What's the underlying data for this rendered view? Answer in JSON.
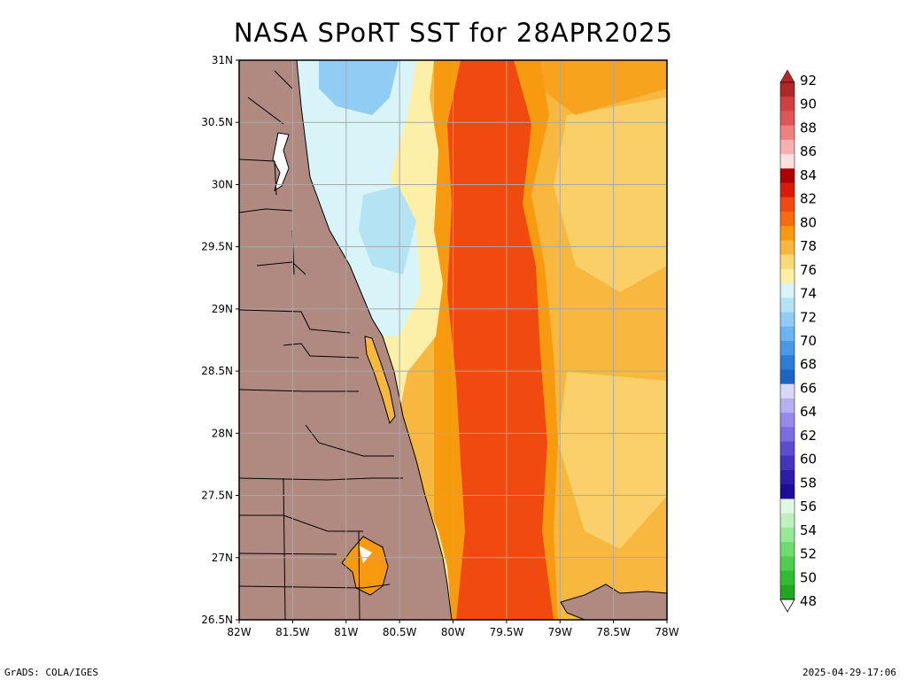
{
  "title": "NASA SPoRT SST for 28APR2025",
  "footer": {
    "left": "GrADS: COLA/IGES",
    "right": "2025-04-29-17:06"
  },
  "map": {
    "lat_ticks": [
      "31N",
      "30.5N",
      "30N",
      "29.5N",
      "29N",
      "28.5N",
      "28N",
      "27.5N",
      "27N",
      "26.5N"
    ],
    "lon_ticks": [
      "82W",
      "81.5W",
      "81W",
      "80.5W",
      "80W",
      "79.5W",
      "79W",
      "78.5W",
      "78W"
    ],
    "lat_range": [
      26.5,
      31
    ],
    "lon_range": [
      -82,
      -78
    ],
    "grid": true,
    "land_color": "#b08a80"
  },
  "colorbar": {
    "labels": [
      "92",
      "90",
      "88",
      "86",
      "84",
      "82",
      "80",
      "78",
      "76",
      "74",
      "72",
      "70",
      "68",
      "66",
      "64",
      "62",
      "60",
      "58",
      "56",
      "54",
      "52",
      "50",
      "48"
    ],
    "colors": [
      "#b02828",
      "#d04040",
      "#e05555",
      "#ee8080",
      "#f8b0b0",
      "#fce0e0",
      "#aa0000",
      "#d81c0c",
      "#f04a10",
      "#f86a10",
      "#f89a10",
      "#f8b840",
      "#fcd878",
      "#fcf0a8",
      "#d8f4f8",
      "#b4e4f4",
      "#90ccf4",
      "#6cb4f0",
      "#4c98e8",
      "#2c7cd8",
      "#1c64c8",
      "#d8d8f8",
      "#b8b0f4",
      "#9888ec",
      "#7c6ce0",
      "#5c4cd0",
      "#4434bc",
      "#2c1ca8",
      "#1c0c98",
      "#e0f8e0",
      "#c0f0c0",
      "#98e898",
      "#70dc70",
      "#50cc50",
      "#30bc30",
      "#20a820"
    ]
  }
}
